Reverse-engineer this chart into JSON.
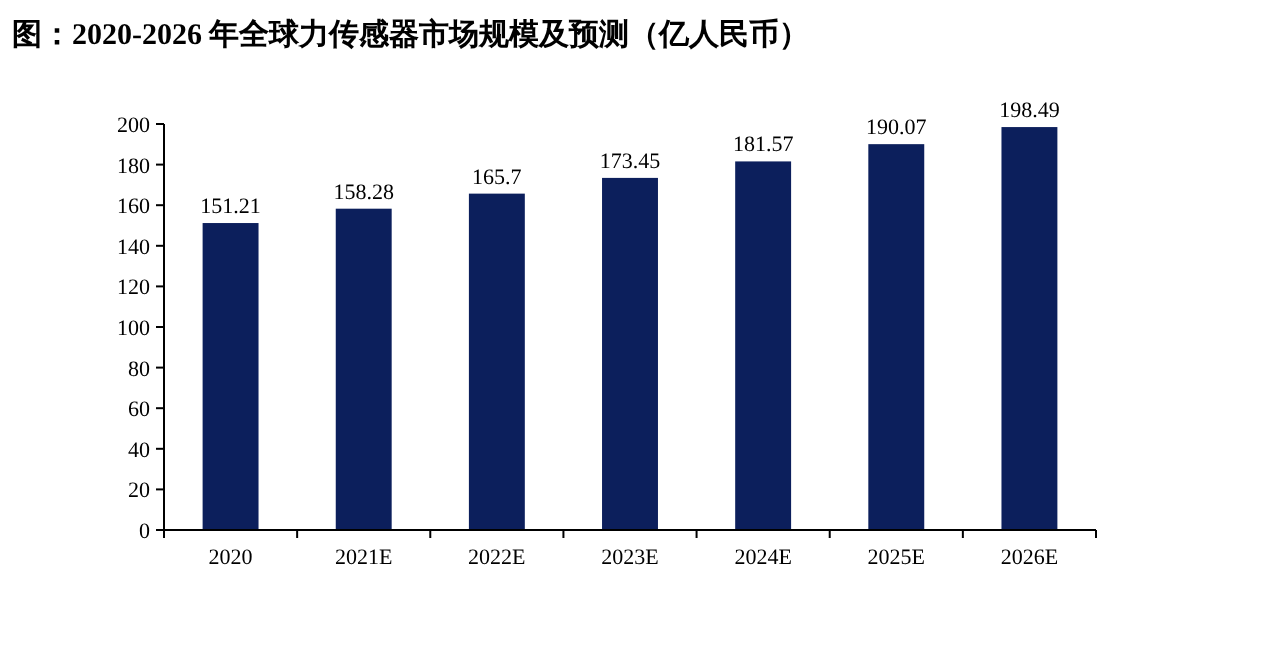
{
  "chart_data": {
    "type": "bar",
    "title": "图：2020-2026 年全球力传感器市场规模及预测（亿人民币）",
    "categories": [
      "2020",
      "2021E",
      "2022E",
      "2023E",
      "2024E",
      "2025E",
      "2026E"
    ],
    "values": [
      151.21,
      158.28,
      165.7,
      173.45,
      181.57,
      190.07,
      198.49
    ],
    "color": "#0c1f5c",
    "ylim": [
      0,
      200
    ],
    "yticks": [
      0,
      20,
      40,
      60,
      80,
      100,
      120,
      140,
      160,
      180,
      200
    ],
    "data_labels": true,
    "grid": false
  }
}
